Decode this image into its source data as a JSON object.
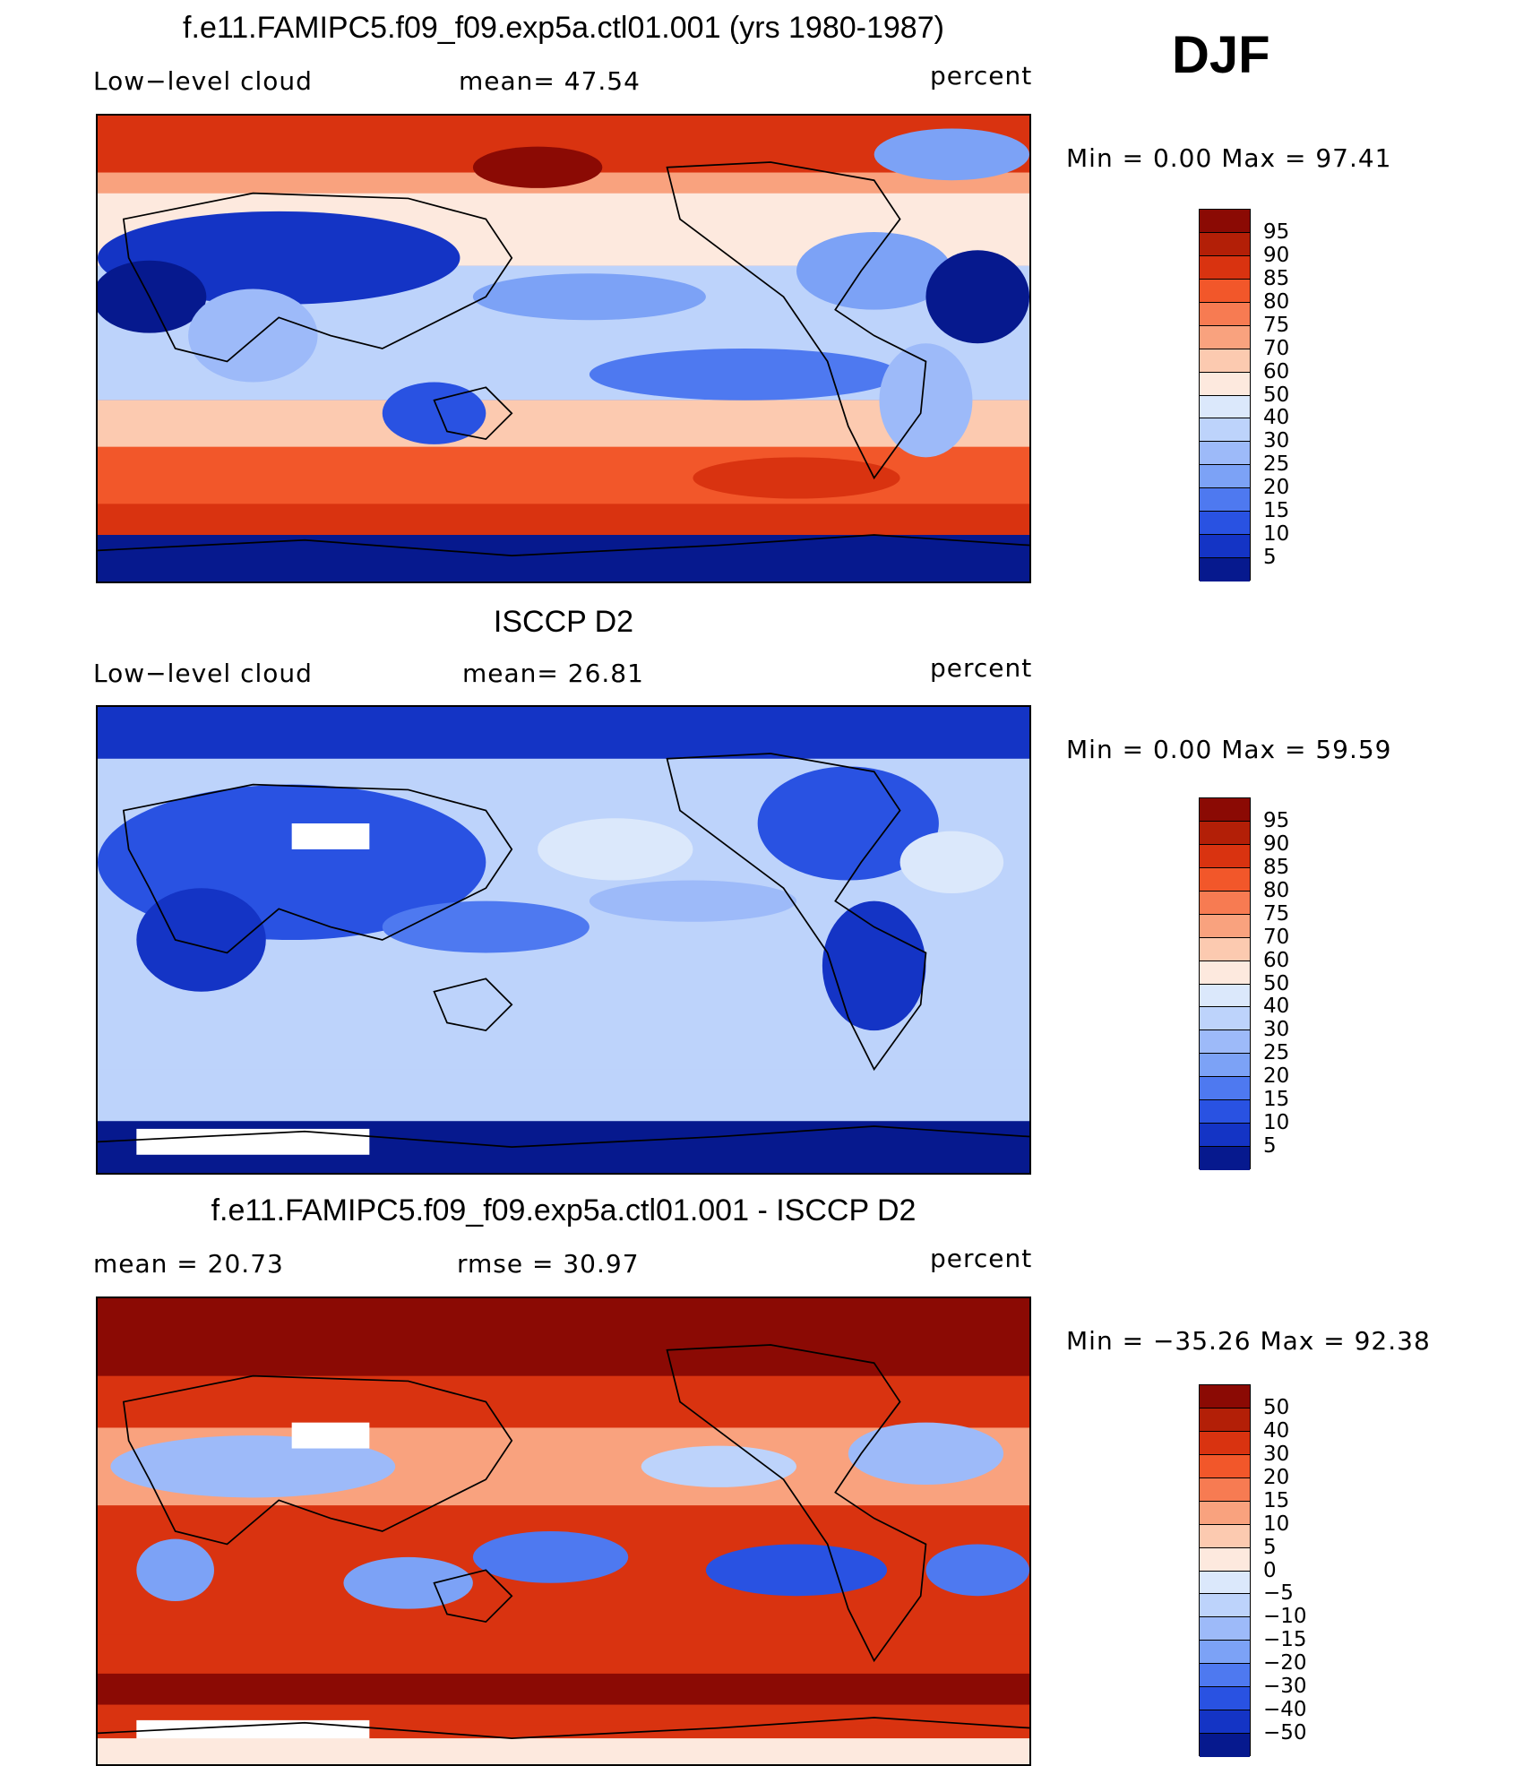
{
  "season": "DJF",
  "panels": [
    {
      "title": "f.e11.FAMIPC5.f09_f09.exp5a.ctl01.001 (yrs 1980-1987)",
      "left_label": "Low−level cloud",
      "center_label": "mean=   47.54",
      "right_label": "percent",
      "minmax": "Min  =     0.00  Max  =    97.41",
      "colorbar": {
        "colors": [
          "#8b0a04",
          "#b31f07",
          "#d93310",
          "#f2572a",
          "#f77b52",
          "#f9a27e",
          "#fccab0",
          "#fde9de",
          "#dbe8fb",
          "#bdd3fb",
          "#9dbaf9",
          "#7ca2f6",
          "#4e79f0",
          "#2952e2",
          "#1434c5",
          "#06198e"
        ],
        "ticks": [
          "95",
          "90",
          "85",
          "80",
          "75",
          "70",
          "60",
          "50",
          "40",
          "30",
          "25",
          "20",
          "15",
          "10",
          "5"
        ]
      }
    },
    {
      "title": "ISCCP D2",
      "left_label": "Low−level cloud",
      "center_label": "mean=   26.81",
      "right_label": "percent",
      "minmax": "Min  =     0.00  Max  =    59.59",
      "colorbar": {
        "colors": [
          "#8b0a04",
          "#b31f07",
          "#d93310",
          "#f2572a",
          "#f77b52",
          "#f9a27e",
          "#fccab0",
          "#fde9de",
          "#dbe8fb",
          "#bdd3fb",
          "#9dbaf9",
          "#7ca2f6",
          "#4e79f0",
          "#2952e2",
          "#1434c5",
          "#06198e"
        ],
        "ticks": [
          "95",
          "90",
          "85",
          "80",
          "75",
          "70",
          "60",
          "50",
          "40",
          "30",
          "25",
          "20",
          "15",
          "10",
          "5"
        ]
      }
    },
    {
      "title": "f.e11.FAMIPC5.f09_f09.exp5a.ctl01.001 - ISCCP D2",
      "left_label": "mean  =    20.73",
      "center_label": "rmse  =    30.97",
      "right_label": "percent",
      "minmax": "Min  =  −35.26  Max  =    92.38",
      "colorbar": {
        "colors": [
          "#8b0a04",
          "#b31f07",
          "#d93310",
          "#f2572a",
          "#f77b52",
          "#f9a27e",
          "#fccab0",
          "#fde9de",
          "#dbe8fb",
          "#bdd3fb",
          "#9dbaf9",
          "#7ca2f6",
          "#4e79f0",
          "#2952e2",
          "#1434c5",
          "#06198e"
        ],
        "ticks": [
          "50",
          "40",
          "30",
          "20",
          "15",
          "10",
          "5",
          "0",
          "−5",
          "−10",
          "−15",
          "−20",
          "−30",
          "−40",
          "−50"
        ]
      }
    }
  ]
}
